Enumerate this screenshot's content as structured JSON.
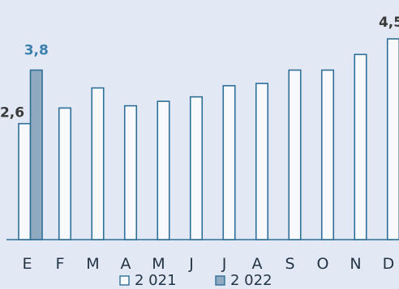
{
  "chart_data": {
    "type": "bar",
    "categories": [
      "E",
      "F",
      "M",
      "A",
      "M",
      "J",
      "J",
      "A",
      "S",
      "O",
      "N",
      "D"
    ],
    "series": [
      {
        "name": "2 021",
        "values": [
          2.6,
          2.95,
          3.4,
          3.0,
          3.1,
          3.2,
          3.45,
          3.5,
          3.8,
          3.8,
          4.15,
          4.5
        ],
        "color": "#f7f9fc",
        "stroke": "#2f6f98"
      },
      {
        "name": "2 022",
        "values": [
          3.8,
          null,
          null,
          null,
          null,
          null,
          null,
          null,
          null,
          null,
          null,
          null
        ],
        "color": "#8fa9bf",
        "stroke": "#2f6f98"
      }
    ],
    "data_labels": [
      {
        "series": 0,
        "index": 0,
        "text": "2,6",
        "color": "#3a3a3a"
      },
      {
        "series": 1,
        "index": 0,
        "text": "3,8",
        "color": "#3b7fad"
      },
      {
        "series": 0,
        "index": 11,
        "text": "4,5",
        "color": "#3a3a3a"
      }
    ],
    "ylim": [
      0,
      4.5
    ],
    "grid": false,
    "legend": "bottom-center"
  }
}
